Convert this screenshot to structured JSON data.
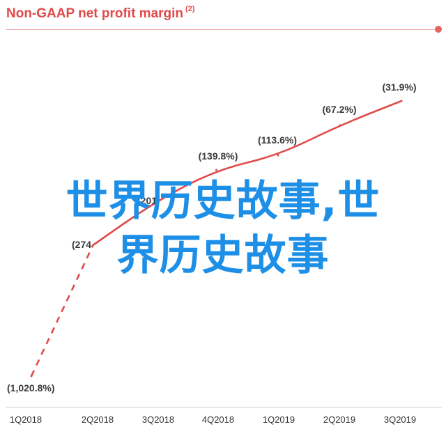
{
  "chart_data": {
    "type": "line",
    "title": "Non-GAAP net profit margin",
    "title_footnote": "(2)",
    "categories": [
      "1Q2018",
      "2Q2018",
      "3Q2018",
      "4Q2018",
      "1Q2019",
      "2Q2019",
      "3Q2019"
    ],
    "series": [
      {
        "values": [
          -1020.8,
          -274,
          -201,
          -139.8,
          -113.6,
          -67.2,
          -31.9
        ],
        "data_labels": [
          "(1,020.8%)",
          "(274",
          "(201",
          "(139.8%)",
          "(113.6%)",
          "(67.2%)",
          "(31.9%)"
        ]
      }
    ],
    "dashed_until_index": 1,
    "grid": false,
    "legend": "none",
    "colors": {
      "title": "#e04a4a",
      "line": "#e04a4a",
      "rule": "#e8a3a3",
      "axis_text": "#333333",
      "overlay": "#1e8fe6"
    }
  },
  "overlay": {
    "line1": "世界历史故事,世",
    "line2": "界历史故事"
  }
}
